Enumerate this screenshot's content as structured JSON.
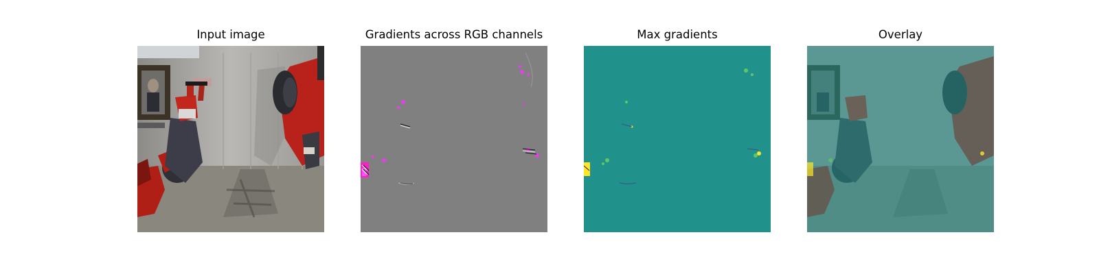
{
  "panels": [
    {
      "title": "Input image"
    },
    {
      "title": "Gradients across RGB channels"
    },
    {
      "title": "Max gradients"
    },
    {
      "title": "Overlay"
    }
  ],
  "colors": {
    "viridis_background": "#21918c",
    "gradient_gray": "#808080",
    "viridis_max": "#fde725",
    "robot_red": "#b8221a"
  }
}
